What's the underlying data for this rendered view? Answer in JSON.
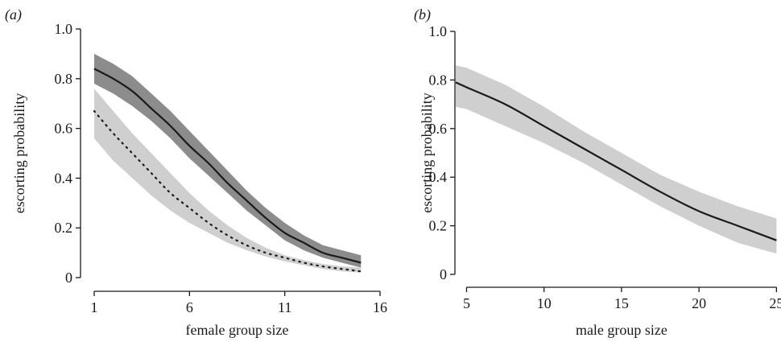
{
  "chart_data": [
    {
      "type": "line",
      "panel_label": "(a)",
      "xlabel": "female group size",
      "ylabel": "escorting probability",
      "xlim": [
        1,
        16
      ],
      "ylim": [
        0,
        1.0
      ],
      "xticks": [
        "1",
        "6",
        "11",
        "16"
      ],
      "yticks": [
        "0",
        "0.2",
        "0.4",
        "0.6",
        "0.8",
        "1.0"
      ],
      "series": [
        {
          "style": "solid",
          "line_color": "#1a1a1a",
          "band_color": "#8c8c8c",
          "x": [
            1,
            2,
            3,
            4,
            5,
            6,
            7,
            8,
            9,
            10,
            11,
            12,
            13,
            14,
            15
          ],
          "y": [
            0.84,
            0.8,
            0.75,
            0.68,
            0.61,
            0.53,
            0.46,
            0.38,
            0.31,
            0.24,
            0.18,
            0.14,
            0.1,
            0.08,
            0.06
          ],
          "lower": [
            0.78,
            0.74,
            0.69,
            0.63,
            0.56,
            0.48,
            0.41,
            0.34,
            0.27,
            0.21,
            0.15,
            0.11,
            0.08,
            0.06,
            0.04
          ],
          "upper": [
            0.9,
            0.86,
            0.81,
            0.74,
            0.67,
            0.59,
            0.51,
            0.43,
            0.35,
            0.28,
            0.22,
            0.17,
            0.13,
            0.11,
            0.09
          ]
        },
        {
          "style": "dotted",
          "line_color": "#1a1a1a",
          "band_color": "#cfcfcf",
          "x": [
            1,
            2,
            3,
            4,
            5,
            6,
            7,
            8,
            9,
            10,
            11,
            12,
            13,
            14,
            15
          ],
          "y": [
            0.67,
            0.58,
            0.5,
            0.42,
            0.34,
            0.28,
            0.22,
            0.17,
            0.13,
            0.1,
            0.08,
            0.06,
            0.045,
            0.035,
            0.025
          ],
          "lower": [
            0.56,
            0.47,
            0.4,
            0.33,
            0.27,
            0.22,
            0.18,
            0.14,
            0.11,
            0.085,
            0.065,
            0.05,
            0.035,
            0.025,
            0.02
          ],
          "upper": [
            0.76,
            0.67,
            0.58,
            0.5,
            0.42,
            0.34,
            0.27,
            0.21,
            0.16,
            0.12,
            0.09,
            0.07,
            0.055,
            0.045,
            0.04
          ]
        }
      ]
    },
    {
      "type": "line",
      "panel_label": "(b)",
      "xlabel": "male group size",
      "ylabel": "escorting probability",
      "xlim": [
        4.3,
        25.5
      ],
      "ylim": [
        0,
        1.0
      ],
      "xticks": [
        "5",
        "10",
        "15",
        "20",
        "25"
      ],
      "xtick_values": [
        5,
        10,
        15,
        20,
        25
      ],
      "yticks": [
        "0",
        "0.2",
        "0.4",
        "0.6",
        "0.8",
        "1.0"
      ],
      "series": [
        {
          "style": "solid",
          "line_color": "#1a1a1a",
          "band_color": "#cfcfcf",
          "x": [
            4.3,
            5,
            7.5,
            10,
            12.5,
            15,
            17.5,
            20,
            22.5,
            25
          ],
          "y": [
            0.79,
            0.77,
            0.7,
            0.61,
            0.52,
            0.43,
            0.34,
            0.26,
            0.2,
            0.14
          ],
          "lower": [
            0.69,
            0.68,
            0.61,
            0.54,
            0.46,
            0.37,
            0.28,
            0.2,
            0.13,
            0.085
          ],
          "upper": [
            0.86,
            0.85,
            0.78,
            0.69,
            0.59,
            0.5,
            0.41,
            0.34,
            0.28,
            0.23
          ]
        }
      ]
    }
  ]
}
